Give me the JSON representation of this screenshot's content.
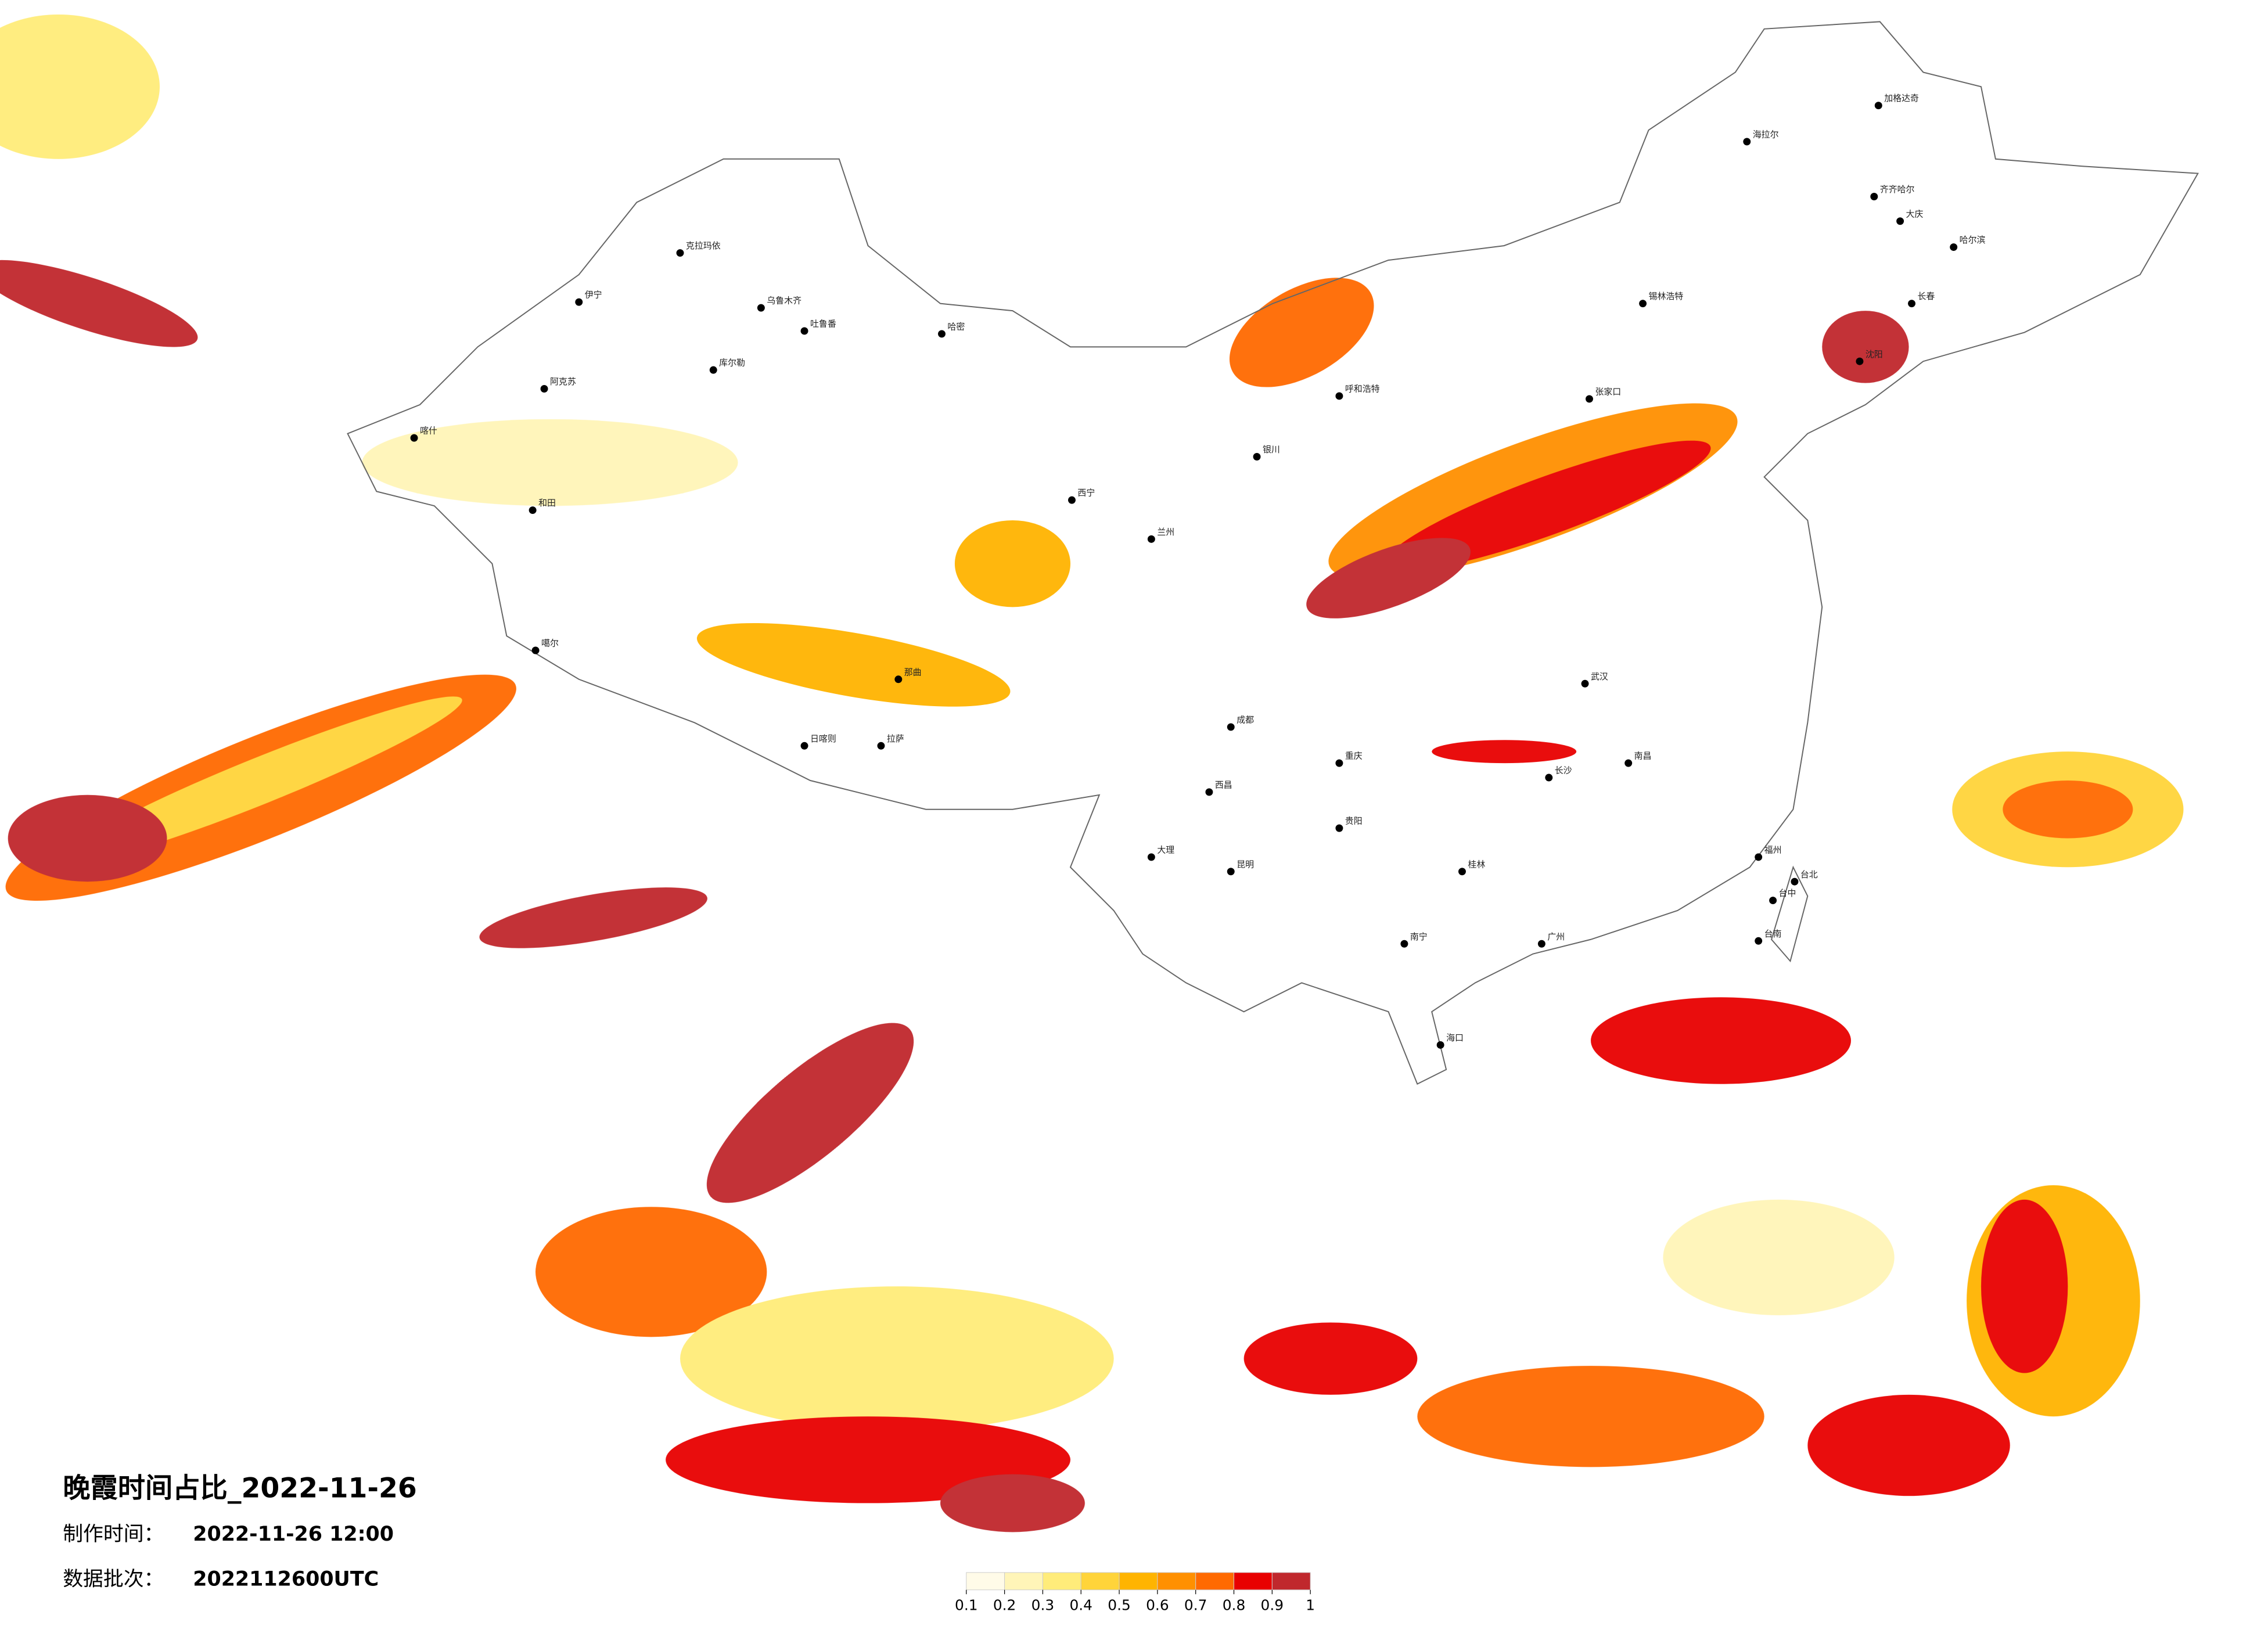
{
  "meta": {
    "title": "晚霞时间占比_2022-11-26",
    "made_label": "制作时间：",
    "made_value": "2022-11-26 12:00",
    "batch_label": "数据批次：",
    "batch_value": "2022112600UTC"
  },
  "legend": {
    "bins": [
      0.1,
      0.2,
      0.3,
      0.4,
      0.5,
      0.6,
      0.7,
      0.8,
      0.9,
      1
    ],
    "colors": [
      "#fffbe8",
      "#fff5b8",
      "#ffec7a",
      "#ffd43a",
      "#ffb400",
      "#ff9000",
      "#ff6a00",
      "#e80000",
      "#c0282d"
    ]
  },
  "cities": [
    "克拉玛依",
    "伊宁",
    "乌鲁木齐",
    "吐鲁番",
    "哈密",
    "库尔勒",
    "阿克苏",
    "喀什",
    "和田",
    "噶尔",
    "日喀则",
    "拉萨",
    "那曲",
    "西宁",
    "兰州",
    "银川",
    "呼和浩特",
    "张家口",
    "锡林浩特",
    "海拉尔",
    "加格达奇",
    "齐齐哈尔",
    "大庆",
    "哈尔滨",
    "长春",
    "沈阳",
    "成都",
    "重庆",
    "西昌",
    "昆明",
    "大理",
    "贵阳",
    "南宁",
    "桂林",
    "长沙",
    "武汉",
    "南昌",
    "福州",
    "台北",
    "台中",
    "台南",
    "广州",
    "海口"
  ]
}
